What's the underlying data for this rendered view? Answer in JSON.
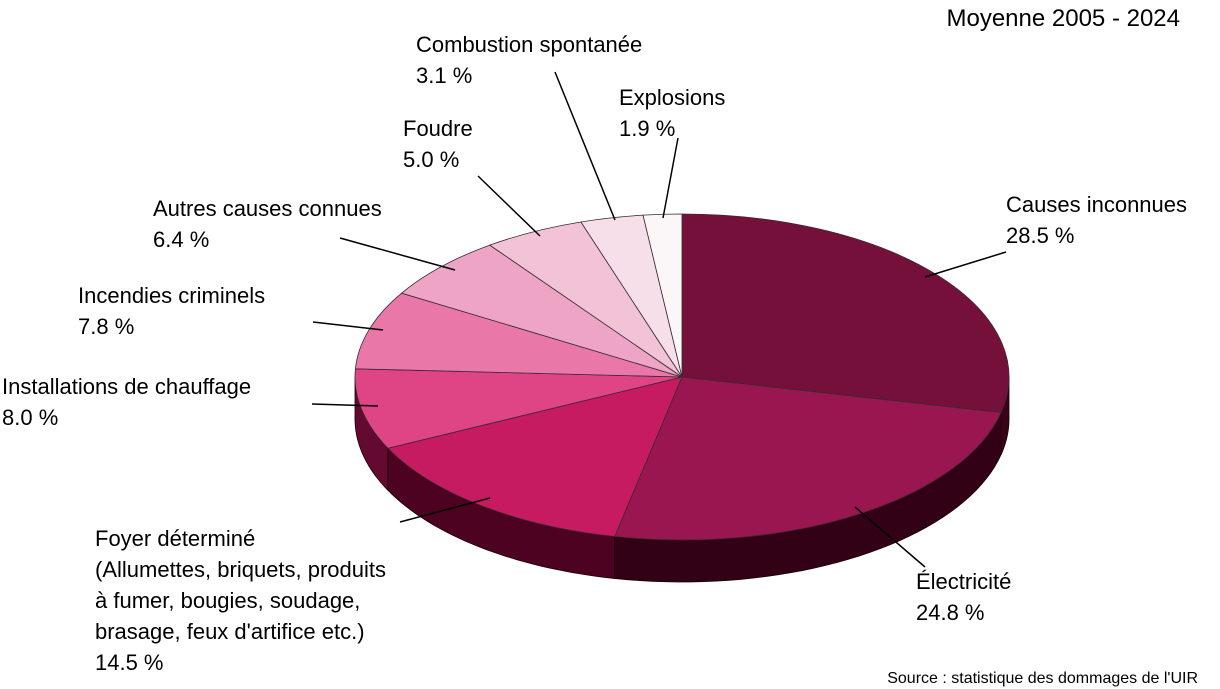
{
  "chart_data": {
    "type": "pie",
    "subtitle": "Moyenne 2005 - 2024",
    "source": "Source : statistique des dommages de l'UIR",
    "slices": [
      {
        "lines": [
          "Causes inconnues",
          "28.5 %"
        ],
        "value": 28.5,
        "color": "#74103a",
        "side_color": "#3a0318"
      },
      {
        "lines": [
          "Électricité",
          "24.8 %"
        ],
        "value": 24.8,
        "color": "#9a1650",
        "side_color": "#330115"
      },
      {
        "lines": [
          "Foyer déterminé",
          "(Allumettes, briquets, produits",
          "à fumer, bougies, soudage,",
          "brasage, feux d'artifice etc.)",
          "14.5 %"
        ],
        "value": 14.5,
        "color": "#c61a61",
        "side_color": "#4c0220"
      },
      {
        "lines": [
          "Installations de chauffage",
          "8.0 %"
        ],
        "value": 8.0,
        "color": "#df4485",
        "side_color": "#640a30"
      },
      {
        "lines": [
          "Incendies criminels",
          "7.8 %"
        ],
        "value": 7.8,
        "color": "#e977a7",
        "side_color": "#7a1a45"
      },
      {
        "lines": [
          "Autres causes connues",
          "6.4 %"
        ],
        "value": 6.4,
        "color": "#eea4c5",
        "side_color": "#8a3a5c"
      },
      {
        "lines": [
          "Foudre",
          "5.0 %"
        ],
        "value": 5.0,
        "color": "#f2c2d6",
        "side_color": "#9a6a7c"
      },
      {
        "lines": [
          "Combustion spontanée",
          "3.1 %"
        ],
        "value": 3.1,
        "color": "#f6dfe9",
        "side_color": "#a08a94"
      },
      {
        "lines": [
          "Explosions",
          "1.9 %"
        ],
        "value": 1.9,
        "color": "#fbf7f9",
        "side_color": "#b0a8ac"
      }
    ]
  }
}
